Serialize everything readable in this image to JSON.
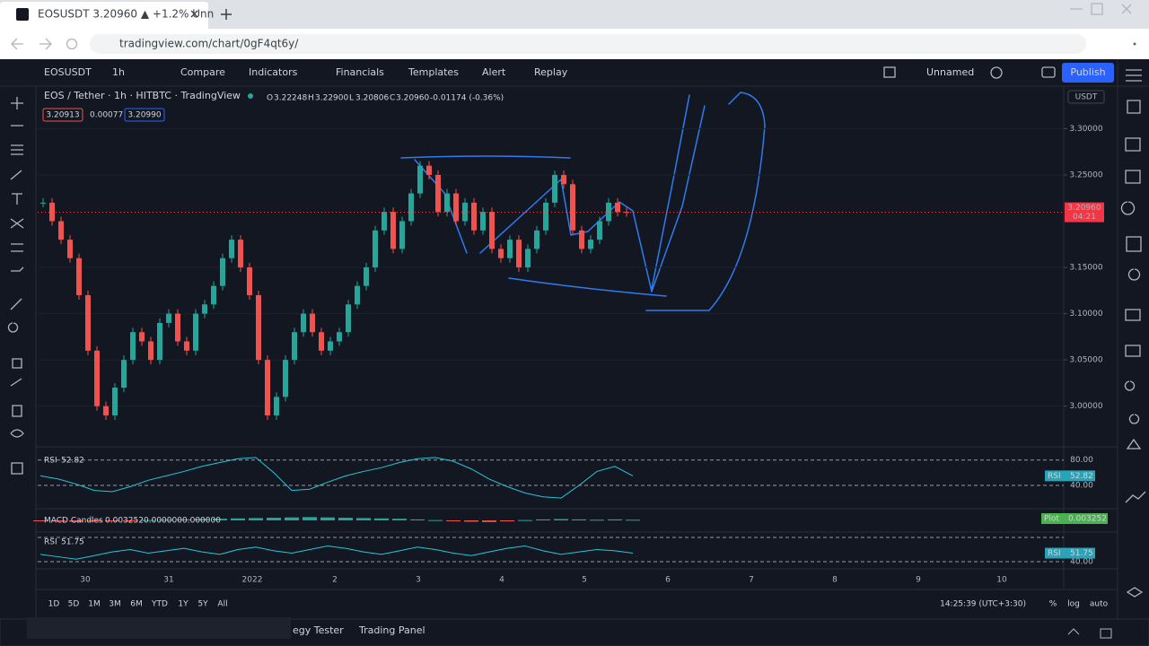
{
  "browser": {
    "tab_title": "EOSUSDT 3.20960 ▲ +1.2% Unn",
    "url": "tradingview.com/chart/0gF4qt6y/"
  },
  "toolbar": {
    "symbol": "EOSUSDT",
    "interval": "1h",
    "items": [
      "Compare",
      "Indicators",
      "Financials",
      "Templates",
      "Alert",
      "Replay"
    ],
    "layout_name": "Unnamed",
    "publish": "Publish"
  },
  "legend": {
    "title": "EOS / Tether · 1h · HITBTC · TradingView",
    "open_label": "O",
    "open": "3.22248",
    "high_label": "H",
    "high": "3.22900",
    "low_label": "L",
    "low": "3.20806",
    "close_label": "C",
    "close": "3.20960",
    "change": "-0.01174 (-0.36%)",
    "bid": "3.20913",
    "spread": "0.00077",
    "ask": "3.20990"
  },
  "chart_data": {
    "type": "candlestick",
    "currency": "USDT",
    "values": [
      3.22,
      3.2,
      3.18,
      3.16,
      3.12,
      3.06,
      3.0,
      2.99,
      3.02,
      3.05,
      3.08,
      3.07,
      3.05,
      3.09,
      3.1,
      3.07,
      3.06,
      3.1,
      3.11,
      3.13,
      3.16,
      3.18,
      3.15,
      3.12,
      3.05,
      2.99,
      3.01,
      3.05,
      3.08,
      3.1,
      3.08,
      3.06,
      3.07,
      3.08,
      3.11,
      3.13,
      3.15,
      3.19,
      3.21,
      3.17,
      3.2,
      3.23,
      3.26,
      3.25,
      3.21,
      3.23,
      3.2,
      3.22,
      3.19,
      3.21,
      3.17,
      3.16,
      3.18,
      3.15,
      3.17,
      3.19,
      3.22,
      3.25,
      3.24,
      3.19,
      3.17,
      3.18,
      3.2,
      3.22,
      3.21,
      3.2096
    ],
    "up_color": "#26a69a",
    "down_color": "#ef5350",
    "ylim": [
      2.957,
      3.346
    ],
    "yticks": [
      {
        "value": 3.0,
        "label": "3.00000"
      },
      {
        "value": 3.05,
        "label": "3.05000"
      },
      {
        "value": 3.1,
        "label": "3.10000"
      },
      {
        "value": 3.15,
        "label": "3.15000"
      },
      {
        "value": 3.25,
        "label": "3.25000"
      },
      {
        "value": 3.3,
        "label": "3.30000"
      }
    ],
    "last_price": {
      "value": 3.2096,
      "label": "3.20960"
    },
    "countdown": "04:21",
    "time_labels": [
      "30",
      "31",
      "2022",
      "2",
      "3",
      "4",
      "5",
      "6",
      "7",
      "8",
      "9",
      "10"
    ]
  },
  "rsi_pane": {
    "name": "RSI",
    "value": 52.82,
    "color": "#26c6da",
    "ylim": [
      6,
      98
    ],
    "yticks": [
      {
        "value": 80,
        "label": "80.00"
      },
      {
        "value": 40,
        "label": "40.00"
      }
    ],
    "values": [
      55,
      50,
      42,
      32,
      30,
      38,
      48,
      55,
      62,
      70,
      76,
      82,
      84,
      60,
      32,
      34,
      45,
      55,
      62,
      68,
      76,
      82,
      84,
      78,
      66,
      50,
      38,
      28,
      22,
      20,
      40,
      62,
      70,
      55
    ]
  },
  "macd_pane": {
    "name": "MACD Candles",
    "value": 0.003252,
    "signal": {
      "value": 0,
      "label": "0.000000"
    },
    "zero": {
      "value": 0,
      "label": "0.000000"
    },
    "plot_label": "Plot",
    "ylim": [
      -3,
      3
    ],
    "values": [
      -0.2,
      -0.3,
      -0.4,
      -0.3,
      -0.2,
      -0.1,
      0.1,
      0.2,
      0.3,
      0.4,
      0.5,
      0.6,
      0.7,
      0.8,
      0.9,
      1,
      0.9,
      0.8,
      0.7,
      0.6,
      0.5,
      0.3,
      0.1,
      -0.2,
      -0.4,
      -0.5,
      -0.3,
      0.1,
      0.3,
      0.4,
      0.3,
      0.2,
      0.3,
      0.2
    ]
  },
  "rsi2_pane": {
    "name": "RSI",
    "value": 51.75,
    "color": "#26c6da",
    "ylim": [
      31,
      84.5
    ],
    "yticks": [
      {
        "value": 40,
        "label": "40.00"
      }
    ],
    "values": [
      52,
      48,
      44,
      50,
      56,
      60,
      54,
      58,
      62,
      56,
      52,
      60,
      64,
      58,
      54,
      60,
      66,
      62,
      56,
      52,
      58,
      64,
      60,
      54,
      50,
      56,
      62,
      66,
      58,
      52,
      56,
      60,
      58,
      54
    ]
  },
  "bottom_bar": {
    "ranges": [
      "1D",
      "5D",
      "1M",
      "3M",
      "6M",
      "YTD",
      "1Y",
      "5Y",
      "All"
    ],
    "clock": "14:25:39 (UTC+3:30)",
    "options": [
      "%",
      "log",
      "auto"
    ]
  },
  "bottom_panel": {
    "tabs": [
      "egy Tester",
      "Trading Panel"
    ]
  }
}
